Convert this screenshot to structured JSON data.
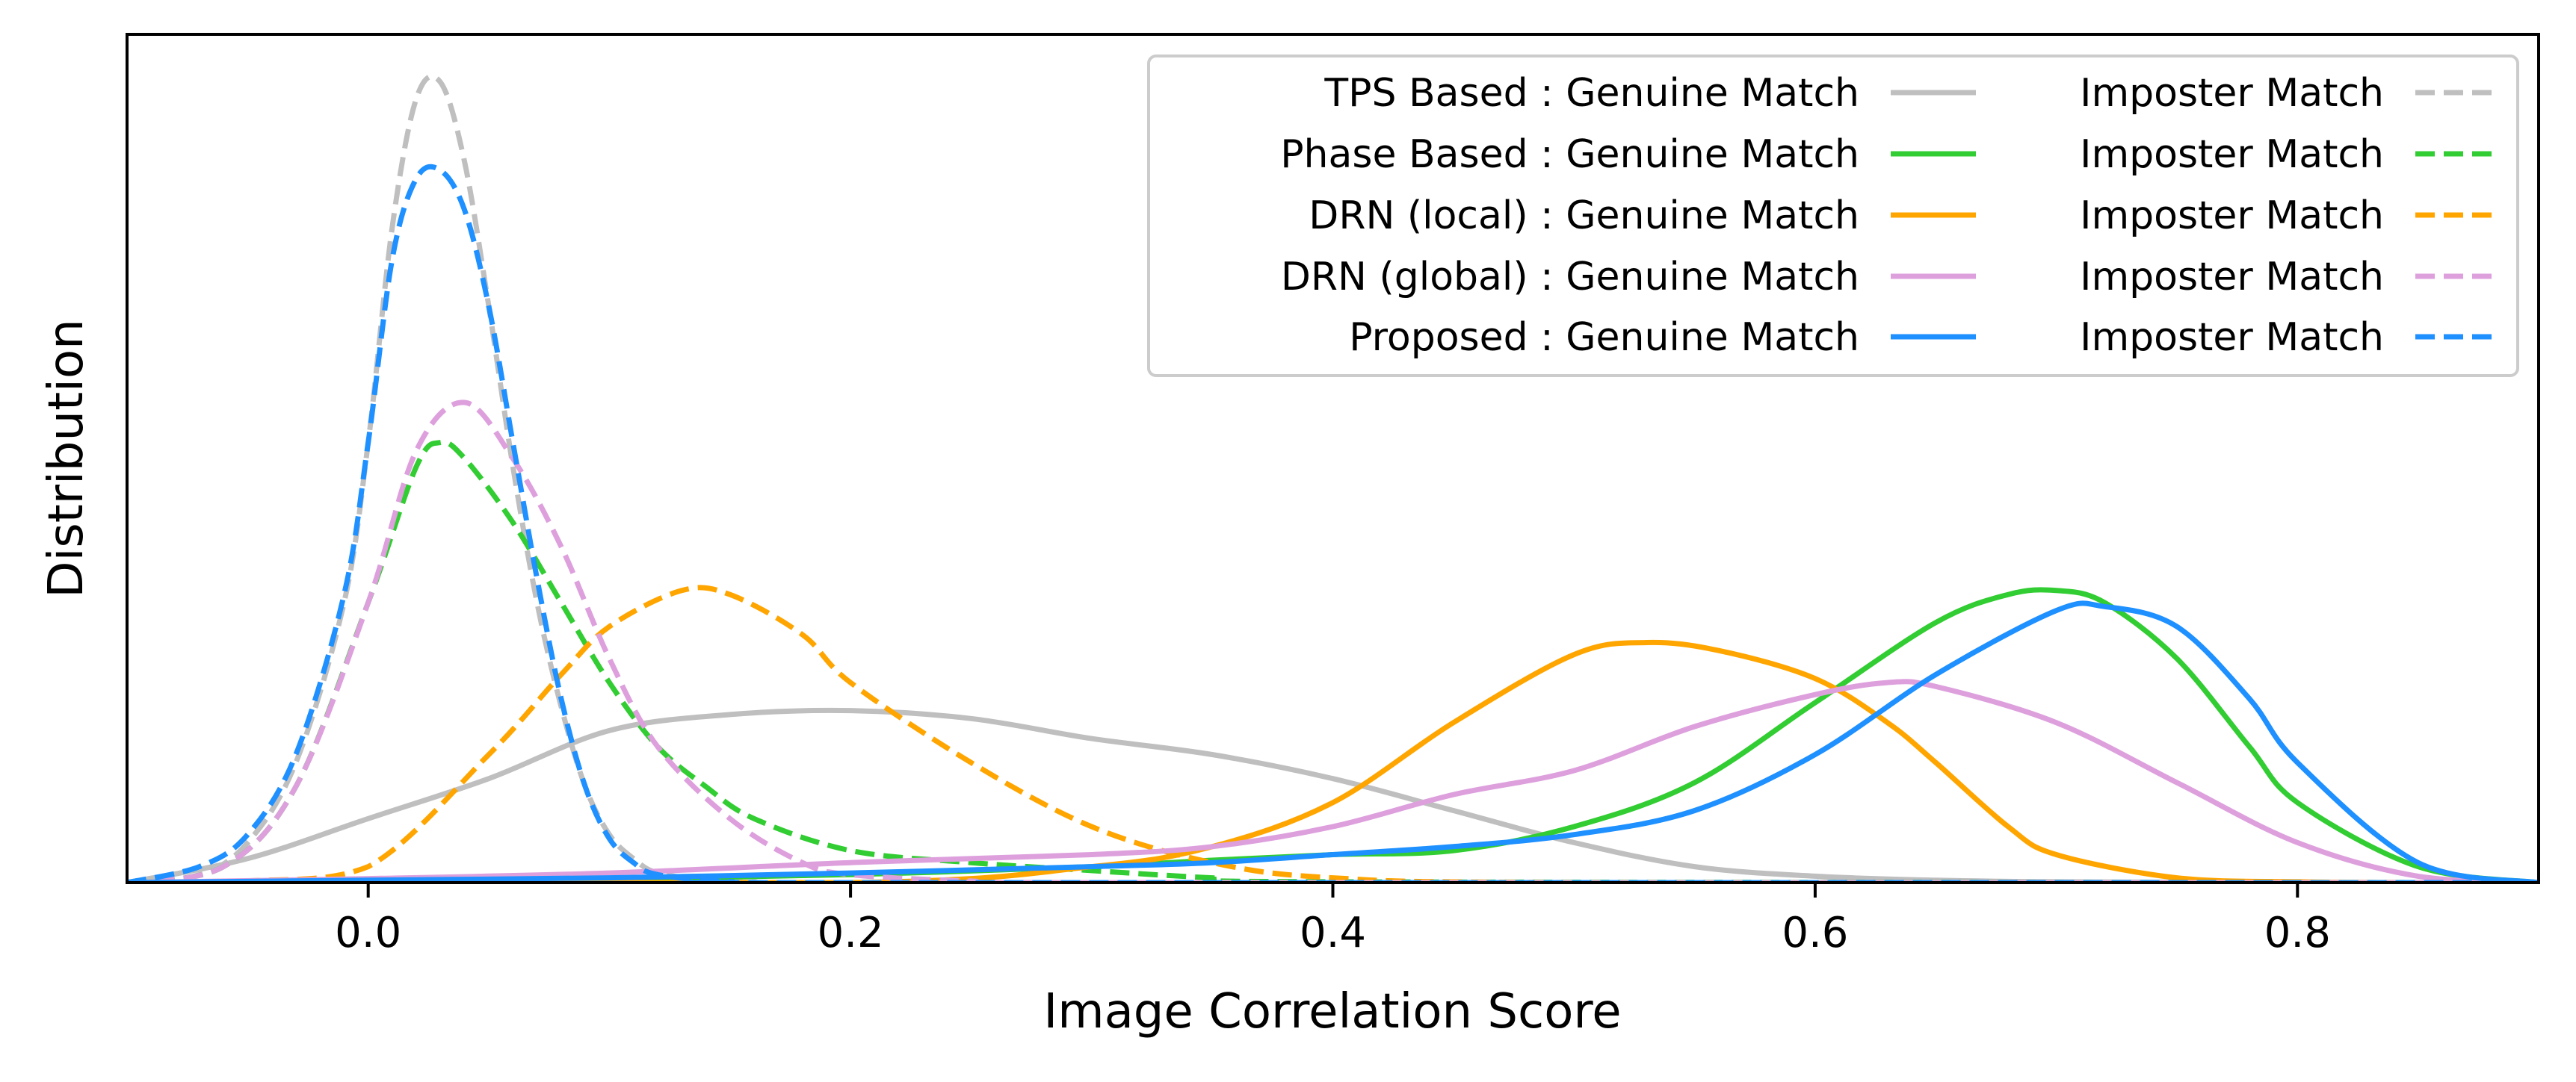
{
  "chart_data": {
    "type": "line",
    "title": "",
    "xlabel": "Image Correlation Score",
    "ylabel": "Distribution",
    "xlim": [
      -0.1,
      0.9
    ],
    "ylim": [
      0,
      1.06
    ],
    "x_ticks": [
      0.0,
      0.2,
      0.4,
      0.6,
      0.8
    ],
    "x_tick_labels": [
      "0.0",
      "0.2",
      "0.4",
      "0.6",
      "0.8"
    ],
    "y_ticks_shown": false,
    "grid": false,
    "legend": {
      "location": "top-right",
      "columns": 2,
      "entries": [
        {
          "label": "TPS Based : Genuine Match",
          "series": "tps-genuine"
        },
        {
          "label": "Imposter Match",
          "series": "tps-imposter"
        },
        {
          "label": "Phase Based : Genuine Match",
          "series": "phase-genuine"
        },
        {
          "label": "Imposter Match",
          "series": "phase-imposter"
        },
        {
          "label": "DRN (local) : Genuine Match",
          "series": "local-genuine"
        },
        {
          "label": "Imposter Match",
          "series": "local-imposter"
        },
        {
          "label": "DRN (global) : Genuine Match",
          "series": "global-genuine"
        },
        {
          "label": "Imposter Match",
          "series": "global-imposter"
        },
        {
          "label": "Proposed : Genuine Match",
          "series": "proposed-genuine"
        },
        {
          "label": "Imposter Match",
          "series": "proposed-imposter"
        }
      ]
    },
    "series": [
      {
        "id": "tps-genuine",
        "color": "#bfbfbf",
        "dash": "solid",
        "x": [
          -0.1,
          -0.05,
          0.0,
          0.05,
          0.1,
          0.15,
          0.2,
          0.25,
          0.3,
          0.35,
          0.4,
          0.45,
          0.5,
          0.55,
          0.6,
          0.65,
          0.7,
          0.8,
          0.9
        ],
        "y": [
          0.0,
          0.03,
          0.08,
          0.13,
          0.19,
          0.21,
          0.215,
          0.205,
          0.18,
          0.16,
          0.13,
          0.09,
          0.05,
          0.02,
          0.008,
          0.003,
          0.001,
          0.0,
          0.0
        ]
      },
      {
        "id": "tps-imposter",
        "color": "#bfbfbf",
        "dash": "dashed",
        "x": [
          -0.1,
          -0.07,
          -0.05,
          -0.03,
          -0.01,
          0.0,
          0.01,
          0.02,
          0.03,
          0.04,
          0.05,
          0.06,
          0.07,
          0.08,
          0.09,
          0.1,
          0.11,
          0.12,
          0.14,
          0.16,
          0.2,
          0.9
        ],
        "y": [
          0.0,
          0.01,
          0.05,
          0.15,
          0.35,
          0.55,
          0.82,
          0.98,
          1.0,
          0.9,
          0.72,
          0.52,
          0.35,
          0.22,
          0.12,
          0.06,
          0.03,
          0.012,
          0.004,
          0.001,
          0.0,
          0.0
        ]
      },
      {
        "id": "phase-genuine",
        "color": "#32cd32",
        "dash": "solid",
        "x": [
          -0.1,
          0.0,
          0.1,
          0.2,
          0.3,
          0.35,
          0.4,
          0.45,
          0.5,
          0.55,
          0.6,
          0.65,
          0.68,
          0.7,
          0.72,
          0.75,
          0.78,
          0.8,
          0.85,
          0.9
        ],
        "y": [
          0.0,
          0.003,
          0.005,
          0.01,
          0.02,
          0.028,
          0.035,
          0.04,
          0.07,
          0.125,
          0.225,
          0.325,
          0.36,
          0.365,
          0.35,
          0.28,
          0.17,
          0.1,
          0.02,
          0.0
        ]
      },
      {
        "id": "phase-imposter",
        "color": "#32cd32",
        "dash": "dashed",
        "x": [
          -0.1,
          -0.06,
          -0.03,
          0.0,
          0.02,
          0.03,
          0.04,
          0.06,
          0.08,
          0.1,
          0.12,
          0.14,
          0.16,
          0.2,
          0.25,
          0.3,
          0.35,
          0.4,
          0.9
        ],
        "y": [
          0.0,
          0.02,
          0.12,
          0.35,
          0.52,
          0.55,
          0.53,
          0.45,
          0.35,
          0.25,
          0.17,
          0.12,
          0.08,
          0.04,
          0.025,
          0.015,
          0.006,
          0.001,
          0.0
        ]
      },
      {
        "id": "local-genuine",
        "color": "#ffa500",
        "dash": "solid",
        "x": [
          -0.1,
          0.2,
          0.3,
          0.35,
          0.4,
          0.45,
          0.5,
          0.53,
          0.56,
          0.6,
          0.63,
          0.65,
          0.68,
          0.7,
          0.75,
          0.8,
          0.85,
          0.9
        ],
        "y": [
          0.0,
          0.0,
          0.02,
          0.045,
          0.1,
          0.2,
          0.285,
          0.3,
          0.29,
          0.255,
          0.2,
          0.15,
          0.07,
          0.035,
          0.006,
          0.001,
          0.0,
          0.0
        ]
      },
      {
        "id": "local-imposter",
        "color": "#ffa500",
        "dash": "dashed",
        "x": [
          -0.1,
          -0.05,
          0.0,
          0.05,
          0.08,
          0.1,
          0.13,
          0.15,
          0.18,
          0.2,
          0.25,
          0.3,
          0.35,
          0.4,
          0.5,
          0.9
        ],
        "y": [
          0.0,
          0.002,
          0.02,
          0.16,
          0.26,
          0.32,
          0.365,
          0.36,
          0.31,
          0.25,
          0.15,
          0.07,
          0.025,
          0.006,
          0.0,
          0.0
        ]
      },
      {
        "id": "global-genuine",
        "color": "#dda0dd",
        "dash": "solid",
        "x": [
          -0.1,
          0.0,
          0.1,
          0.2,
          0.3,
          0.35,
          0.4,
          0.45,
          0.5,
          0.55,
          0.6,
          0.63,
          0.65,
          0.7,
          0.75,
          0.8,
          0.85,
          0.9
        ],
        "y": [
          0.0,
          0.005,
          0.012,
          0.025,
          0.035,
          0.045,
          0.07,
          0.11,
          0.14,
          0.195,
          0.235,
          0.25,
          0.245,
          0.2,
          0.125,
          0.05,
          0.008,
          0.0
        ]
      },
      {
        "id": "global-imposter",
        "color": "#dda0dd",
        "dash": "dashed",
        "x": [
          -0.1,
          -0.06,
          -0.03,
          0.0,
          0.02,
          0.04,
          0.06,
          0.08,
          0.1,
          0.12,
          0.15,
          0.18,
          0.2,
          0.25,
          0.3,
          0.9
        ],
        "y": [
          0.0,
          0.02,
          0.12,
          0.35,
          0.54,
          0.6,
          0.53,
          0.42,
          0.28,
          0.17,
          0.08,
          0.025,
          0.01,
          0.002,
          0.0,
          0.0
        ]
      },
      {
        "id": "proposed-genuine",
        "color": "#1e90ff",
        "dash": "solid",
        "x": [
          -0.1,
          0.0,
          0.1,
          0.2,
          0.3,
          0.35,
          0.4,
          0.45,
          0.5,
          0.55,
          0.6,
          0.65,
          0.7,
          0.72,
          0.75,
          0.78,
          0.8,
          0.85,
          0.9
        ],
        "y": [
          0.0,
          0.003,
          0.006,
          0.012,
          0.02,
          0.025,
          0.035,
          0.045,
          0.06,
          0.09,
          0.16,
          0.26,
          0.34,
          0.345,
          0.32,
          0.23,
          0.15,
          0.025,
          0.0
        ]
      },
      {
        "id": "proposed-imposter",
        "color": "#1e90ff",
        "dash": "dashed",
        "x": [
          -0.1,
          -0.07,
          -0.05,
          -0.03,
          -0.01,
          0.0,
          0.01,
          0.02,
          0.03,
          0.04,
          0.05,
          0.06,
          0.07,
          0.08,
          0.09,
          0.1,
          0.11,
          0.12,
          0.15,
          0.2,
          0.9
        ],
        "y": [
          0.0,
          0.02,
          0.06,
          0.16,
          0.36,
          0.55,
          0.78,
          0.88,
          0.89,
          0.84,
          0.72,
          0.55,
          0.38,
          0.23,
          0.12,
          0.055,
          0.025,
          0.01,
          0.001,
          0.0,
          0.0
        ]
      }
    ]
  }
}
